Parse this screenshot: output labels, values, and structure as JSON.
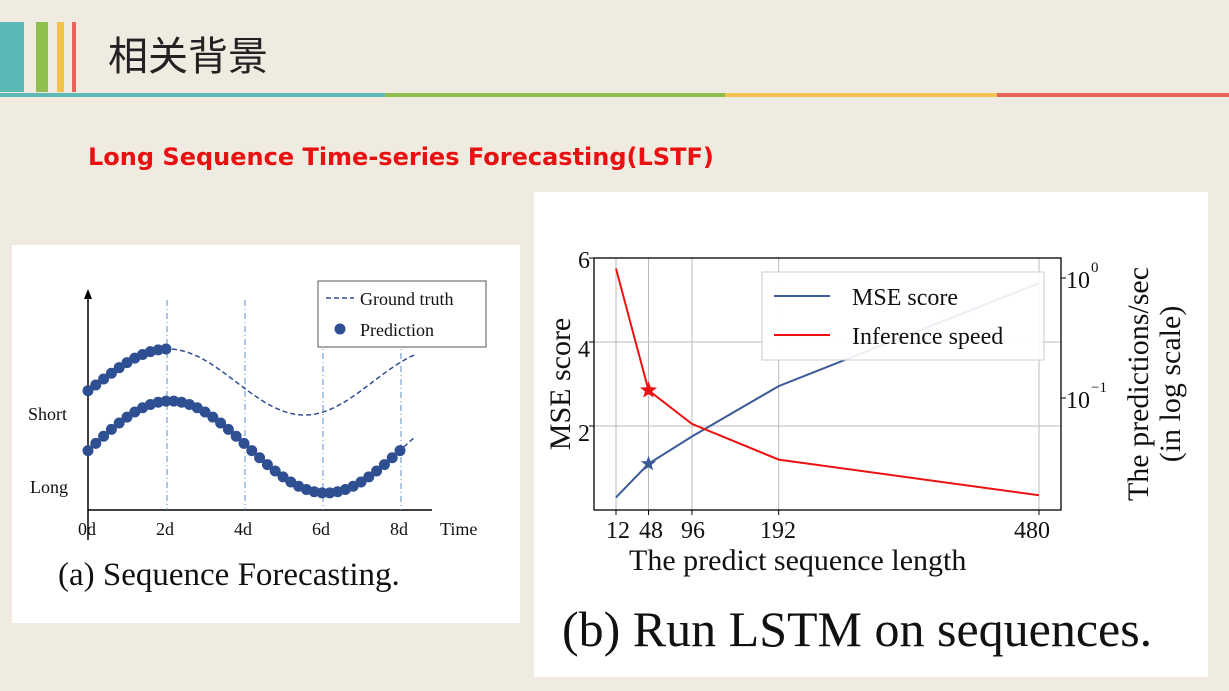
{
  "slide": {
    "title": "相关背景",
    "subtitle": "Long Sequence Time-series Forecasting(LSTF)"
  },
  "colors": {
    "background": "#efebe1",
    "bar1": "#5bb8b4",
    "bar2": "#8fbf4e",
    "bar3": "#f2c14e",
    "bar4": "#e8635a",
    "subtitle": "#e81010",
    "series_blue": "#3b5a98",
    "series_red": "#ee1111"
  },
  "figure_a": {
    "caption": "(a) Sequence Forecasting.",
    "legend_ground_truth": "Ground truth",
    "legend_prediction": "Prediction",
    "label_short": "Short",
    "label_long": "Long",
    "xlabel": "Time",
    "chart_data": {
      "type": "scatter",
      "x_ticks": [
        "0d",
        "2d",
        "4d",
        "6d",
        "8d"
      ],
      "series": [
        {
          "name": "Ground truth",
          "style": "dashed"
        },
        {
          "name": "Prediction",
          "style": "dots"
        }
      ]
    }
  },
  "figure_b": {
    "caption": "(b) Run LSTM on sequences.",
    "chart_data": {
      "type": "line",
      "xlabel": "The predict sequence length",
      "ylabel": "MSE score",
      "ylabel_right_line1": "The predictions/sec",
      "ylabel_right_line2": "(in log scale)",
      "x_ticks": [
        "12",
        "48",
        "96",
        "192",
        "480"
      ],
      "y_ticks": [
        "2",
        "4",
        "6"
      ],
      "y_right_ticks": [
        "10",
        "10"
      ],
      "y_right_exponents": [
        "0",
        "−1"
      ],
      "ylim": [
        0,
        6
      ],
      "x": [
        12,
        48,
        96,
        192,
        480
      ],
      "legend": "top-right",
      "series": [
        {
          "name": "MSE score",
          "color": "#3b5a98",
          "values": [
            0.3,
            1.1,
            1.75,
            2.95,
            5.4
          ],
          "marker_at": 48
        },
        {
          "name": "Inference speed",
          "color": "#ee1111",
          "values": [
            5.75,
            2.85,
            2.05,
            1.2,
            0.35
          ],
          "marker_at": 48
        }
      ]
    }
  }
}
